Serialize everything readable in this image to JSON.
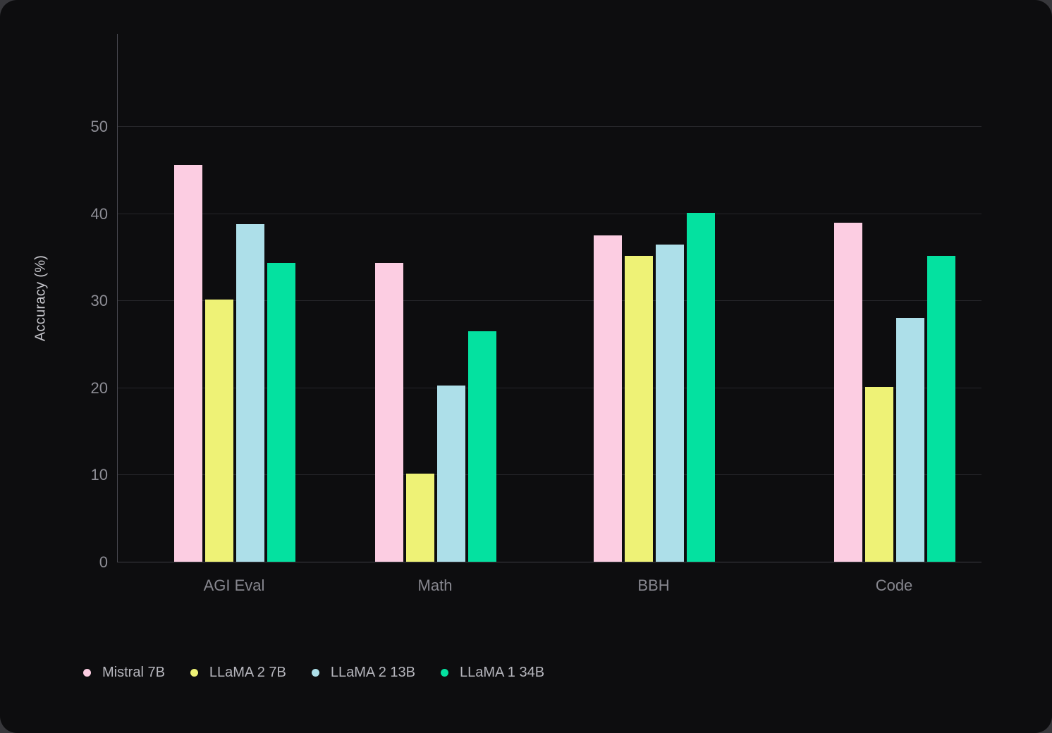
{
  "chart_data": {
    "type": "bar",
    "title": "",
    "ylabel": "Accuracy (%)",
    "xlabel": "",
    "categories": [
      "AGI Eval",
      "Math",
      "BBH",
      "Code"
    ],
    "series": [
      {
        "name": "Mistral 7B",
        "color": "#fccde2",
        "values": [
          45.6,
          34.3,
          37.5,
          38.9
        ]
      },
      {
        "name": "LLaMA 2 7B",
        "color": "#eef276",
        "values": [
          30.1,
          10.1,
          35.1,
          20.1
        ]
      },
      {
        "name": "LLaMA 2 13B",
        "color": "#addfe9",
        "values": [
          38.8,
          20.2,
          36.4,
          28.0
        ]
      },
      {
        "name": "LLaMA 1 34B",
        "color": "#04e1a0",
        "values": [
          34.3,
          26.5,
          40.1,
          35.1
        ]
      }
    ],
    "yticks": [
      0,
      10,
      20,
      30,
      40,
      50
    ],
    "ylim": [
      0,
      60.7
    ],
    "grid": true,
    "legend_position": "bottom-left"
  }
}
